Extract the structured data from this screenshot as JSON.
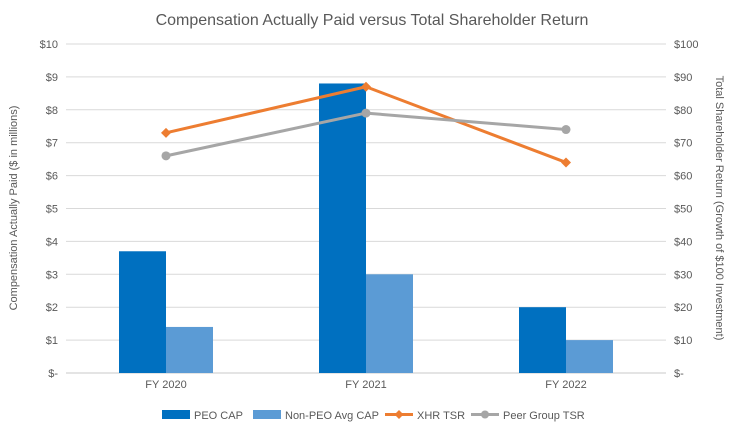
{
  "chart_data": {
    "type": "combo-bar-line",
    "title": "Compensation Actually Paid versus Total Shareholder Return",
    "categories": [
      "FY 2020",
      "FY 2021",
      "FY 2022"
    ],
    "series": [
      {
        "name": "PEO CAP",
        "kind": "bar",
        "axis": "left",
        "color": "#0070C0",
        "values": [
          3.7,
          8.8,
          2.0
        ]
      },
      {
        "name": "Non-PEO Avg CAP",
        "kind": "bar",
        "axis": "left",
        "color": "#5B9BD5",
        "values": [
          1.4,
          3.0,
          1.0
        ]
      },
      {
        "name": "XHR TSR",
        "kind": "line",
        "axis": "right",
        "color": "#ED7D31",
        "marker": "diamond",
        "values": [
          73,
          87,
          64
        ]
      },
      {
        "name": "Peer Group TSR",
        "kind": "line",
        "axis": "right",
        "color": "#A6A6A6",
        "marker": "circle",
        "values": [
          66,
          79,
          74
        ]
      }
    ],
    "left_axis": {
      "label": "Compensation Actually Paid ($ in millions)",
      "min": 0,
      "max": 10,
      "step": 1,
      "tick_labels": [
        "$-",
        "$1",
        "$2",
        "$3",
        "$4",
        "$5",
        "$6",
        "$7",
        "$8",
        "$9",
        "$10"
      ]
    },
    "right_axis": {
      "label": "Total Shareholder Return (Growth of $100 Investment)",
      "min": 0,
      "max": 100,
      "step": 10,
      "tick_labels": [
        "$-",
        "$10",
        "$20",
        "$30",
        "$40",
        "$50",
        "$60",
        "$70",
        "$80",
        "$90",
        "$100"
      ]
    },
    "grid": true,
    "legend_position": "bottom",
    "colors": {
      "background": "#FFFFFF",
      "title_text": "#595959",
      "axis_text": "#595959",
      "gridline": "#D9D9D9",
      "axis_line": "#C9C9C9"
    }
  }
}
